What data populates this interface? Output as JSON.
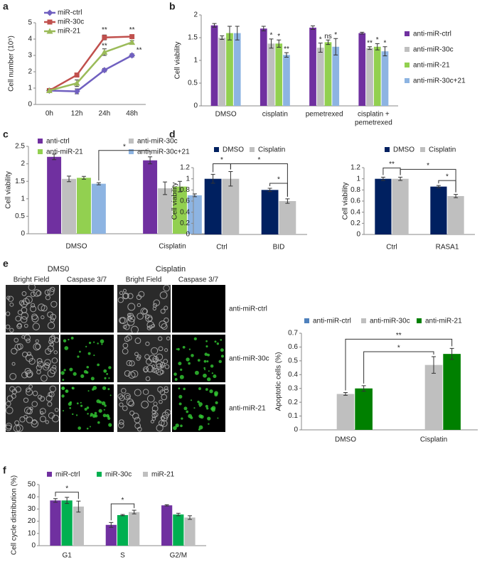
{
  "panel_labels": [
    "a",
    "b",
    "c",
    "d",
    "e",
    "f"
  ],
  "image_panel": {
    "conditions": [
      "DMS0",
      "Cisplatin"
    ],
    "channels": [
      "Bright Field",
      "Caspase 3/7",
      "Bright Field",
      "Caspase 3/7"
    ],
    "rows": [
      "anti-miR-ctrl",
      "anti-miR-30c",
      "anti-miR-21"
    ]
  },
  "chart_data": [
    {
      "type": "line",
      "y_label": "Cell number (10⁵)",
      "categories": [
        "0h",
        "12h",
        "24h",
        "48h"
      ],
      "ylim": [
        0,
        5
      ],
      "yticks": [
        0,
        1,
        2,
        3,
        4,
        5
      ],
      "legend": "top-left",
      "series": [
        {
          "name": "miR-ctrl",
          "color": "#7060c0",
          "marker": "diamond",
          "values": [
            0.85,
            0.8,
            2.1,
            3.0
          ],
          "errors": [
            0.05,
            0.15,
            0.1,
            0.1
          ]
        },
        {
          "name": "miR-30c",
          "color": "#c0504d",
          "marker": "square",
          "values": [
            0.85,
            1.8,
            4.1,
            4.15
          ],
          "errors": [
            0.05,
            0.1,
            0.15,
            0.1
          ]
        },
        {
          "name": "miR-21",
          "color": "#9bbb59",
          "marker": "triangle",
          "values": [
            0.85,
            1.3,
            3.2,
            3.8
          ],
          "errors": [
            0.05,
            0.2,
            0.2,
            0.1
          ]
        }
      ],
      "annotations": [
        "**",
        "**",
        "**",
        "**"
      ]
    },
    {
      "type": "bar",
      "y_label": "Cell viability",
      "categories": [
        "DMSO",
        "cisplatin",
        "pemetrexed",
        [
          "cisplatin +",
          "pemetrexed"
        ]
      ],
      "ylim": [
        0,
        2
      ],
      "yticks": [
        0,
        0.5,
        1,
        1.5,
        2
      ],
      "legend": "right",
      "series": [
        {
          "name": "anti-miR-ctrl",
          "color": "#7030a0",
          "values": [
            1.77,
            1.7,
            1.72,
            1.6
          ],
          "errors": [
            0.04,
            0.05,
            0.04,
            0.02
          ]
        },
        {
          "name": "anti-miR-30c",
          "color": "#bfbfbf",
          "values": [
            1.5,
            1.37,
            1.28,
            1.27
          ],
          "errors": [
            0.04,
            0.1,
            0.1,
            0.03
          ]
        },
        {
          "name": "anti-miR-21",
          "color": "#92d050",
          "values": [
            1.6,
            1.37,
            1.4,
            1.3
          ],
          "errors": [
            0.15,
            0.08,
            0.05,
            0.07
          ]
        },
        {
          "name": "anti-miR-30c+21",
          "color": "#8db4e2",
          "values": [
            1.6,
            1.12,
            1.3,
            1.2
          ],
          "errors": [
            0.15,
            0.05,
            0.18,
            0.1
          ]
        }
      ],
      "annotations": [
        "*",
        "*",
        "**",
        "*",
        "ns",
        "*",
        "**",
        "*",
        "*"
      ]
    },
    {
      "type": "bar",
      "y_label": "Cell viability",
      "categories": [
        "DMSO",
        "Cisplatin"
      ],
      "ylim": [
        0,
        2.5
      ],
      "yticks": [
        0,
        0.5,
        1,
        1.5,
        2,
        2.5
      ],
      "legend": "top",
      "series": [
        {
          "name": "anti-ctrl",
          "color": "#7030a0",
          "values": [
            2.2,
            2.1
          ],
          "errors": [
            0.08,
            0.1
          ]
        },
        {
          "name": "anti-miR-30c",
          "color": "#bfbfbf",
          "values": [
            1.57,
            1.3
          ],
          "errors": [
            0.08,
            0.18
          ]
        },
        {
          "name": "anti-miR-21",
          "color": "#92d050",
          "values": [
            1.6,
            1.35
          ],
          "errors": [
            0.04,
            0.15
          ]
        },
        {
          "name": "anti-miR-30c+21",
          "color": "#8db4e2",
          "values": [
            1.43,
            1.1
          ],
          "errors": [
            0.03,
            0.04
          ]
        }
      ],
      "annotations": [
        "*"
      ]
    },
    {
      "type": "bar",
      "y_label": "Cell viability",
      "categories": [
        "Ctrl",
        "BID"
      ],
      "ylim": [
        0,
        1.2
      ],
      "yticks": [
        0,
        0.2,
        0.4,
        0.6,
        0.8,
        1,
        1.2
      ],
      "legend": "top",
      "series": [
        {
          "name": "DMSO",
          "color": "#002060",
          "values": [
            1.0,
            0.8
          ],
          "errors": [
            0.08,
            0.03
          ]
        },
        {
          "name": "Cisplatin",
          "color": "#bfbfbf",
          "values": [
            1.0,
            0.6
          ],
          "errors": [
            0.13,
            0.04
          ]
        }
      ],
      "annotations": [
        "*",
        "*",
        "*"
      ]
    },
    {
      "type": "bar",
      "y_label": "Cell viability",
      "categories": [
        "Ctrl",
        "RASA1"
      ],
      "ylim": [
        0,
        1.2
      ],
      "yticks": [
        0,
        0.2,
        0.4,
        0.6,
        0.8,
        1,
        1.2
      ],
      "legend": "top",
      "series": [
        {
          "name": "DMSO",
          "color": "#002060",
          "values": [
            1.0,
            0.86
          ],
          "errors": [
            0.03,
            0.02
          ]
        },
        {
          "name": "Cisplatin",
          "color": "#bfbfbf",
          "values": [
            1.0,
            0.69
          ],
          "errors": [
            0.03,
            0.03
          ]
        }
      ],
      "annotations": [
        "*",
        "**",
        "*"
      ]
    },
    {
      "type": "bar",
      "y_label": "Apoptotic cells (%)",
      "categories": [
        "DMSO",
        "Cisplatin"
      ],
      "ylim": [
        0,
        0.7
      ],
      "yticks": [
        0,
        0.1,
        0.2,
        0.3,
        0.4,
        0.5,
        0.6,
        0.7
      ],
      "legend": "top",
      "series": [
        {
          "name": "anti-miR-ctrl",
          "color": "#4f81bd",
          "values": [
            null,
            null
          ],
          "errors": [
            null,
            null
          ]
        },
        {
          "name": "anti-miR-30c",
          "color": "#bfbfbf",
          "values": [
            0.26,
            0.47
          ],
          "errors": [
            0.01,
            0.06
          ]
        },
        {
          "name": "anti-miR-21",
          "color": "#008000",
          "values": [
            0.3,
            0.55
          ],
          "errors": [
            0.02,
            0.04
          ]
        }
      ],
      "annotations": [
        "**",
        "*"
      ]
    },
    {
      "type": "bar",
      "y_label": "Cell cycle distribution (%)",
      "categories": [
        "G1",
        "S",
        "G2/M"
      ],
      "ylim": [
        0,
        50
      ],
      "yticks": [
        0,
        10,
        20,
        30,
        40,
        50
      ],
      "legend": "top",
      "series": [
        {
          "name": "miR-ctrl",
          "color": "#7030a0",
          "values": [
            37,
            17,
            33
          ],
          "errors": [
            1.5,
            2,
            0.5
          ]
        },
        {
          "name": "miR-30c",
          "color": "#00b050",
          "values": [
            37,
            25,
            25.5
          ],
          "errors": [
            2.5,
            0.5,
            1
          ]
        },
        {
          "name": "miR-21",
          "color": "#bfbfbf",
          "values": [
            32,
            27.5,
            23
          ],
          "errors": [
            4.5,
            1.5,
            1.5
          ]
        }
      ],
      "annotations": [
        "*",
        "*"
      ]
    }
  ]
}
